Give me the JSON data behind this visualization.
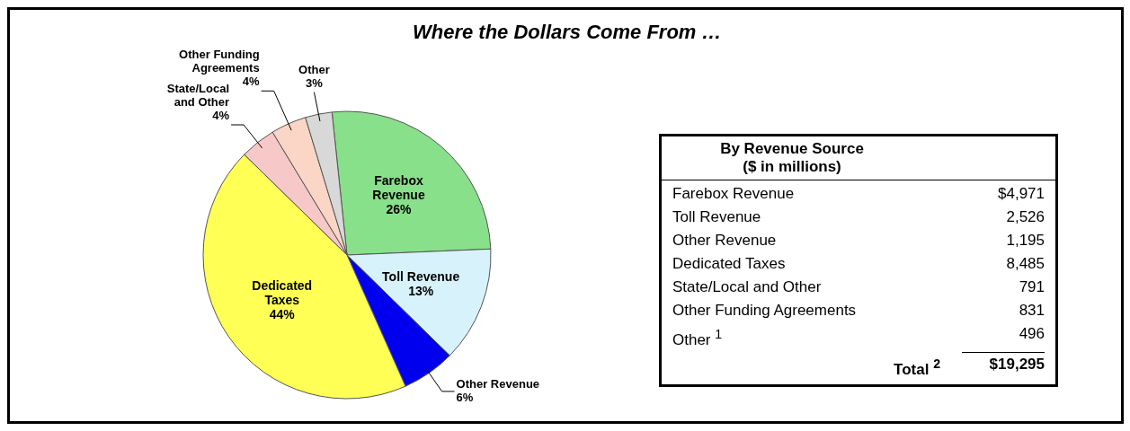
{
  "chart_data": {
    "type": "pie",
    "title": "Where the Dollars Come From …",
    "categories": [
      "Farebox Revenue",
      "Toll Revenue",
      "Other Revenue",
      "Dedicated Taxes",
      "State/Local and Other",
      "Other Funding Agreements",
      "Other"
    ],
    "values": [
      26,
      13,
      6,
      44,
      4,
      4,
      3
    ],
    "value_labels": [
      "26%",
      "13%",
      "6%",
      "44%",
      "4%",
      "4%",
      "3%"
    ],
    "colors": [
      "#88e08a",
      "#d8f2fb",
      "#0000ee",
      "#ffff55",
      "#f7c8c8",
      "#fbd5c5",
      "#d8d8d8"
    ],
    "legend": false,
    "annotations": [
      "By Revenue Source",
      "($ in millions)",
      "Farebox Revenue",
      "$4,971",
      "Toll Revenue",
      "2,526",
      "Other Revenue",
      "1,195",
      "Dedicated Taxes",
      "8,485",
      "State/Local and Other",
      "791",
      "Other Funding Agreements",
      "831",
      "Other $^{1}$",
      "496",
      "Total $^{2}$",
      "$19,295"
    ]
  }
}
